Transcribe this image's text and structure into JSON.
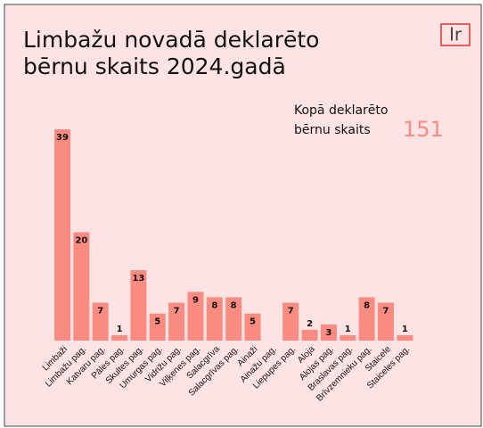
{
  "chart_data": {
    "type": "bar",
    "title_lines": [
      "Limbažu novadā deklarēto",
      "bērnu skaits 2024.gadā"
    ],
    "logo": "Ir",
    "annotation_lines": [
      "Kopā deklarēto",
      "bērnu skaits"
    ],
    "total": 151,
    "categories": [
      "Limbaži",
      "Limbažu pag.",
      "Katvaru pag.",
      "Pāles pag.",
      "Skultes pag.",
      "Umurgas pag.",
      "Vidrižu pag.",
      "Viļķenes pag.",
      "Salacgrīva",
      "Salacgrīvas pag.",
      "Ainaži",
      "Ainažu pag.",
      "Liepupes pag.",
      "Aloja",
      "Alojas pag.",
      "Braslavas pag.",
      "Brīvzemnieku pag.",
      "Staicele",
      "Staiceles pag."
    ],
    "values": [
      39,
      20,
      7,
      1,
      13,
      5,
      7,
      9,
      8,
      8,
      5,
      null,
      7,
      2,
      3,
      1,
      8,
      7,
      1
    ],
    "color": "#f98b80"
  }
}
